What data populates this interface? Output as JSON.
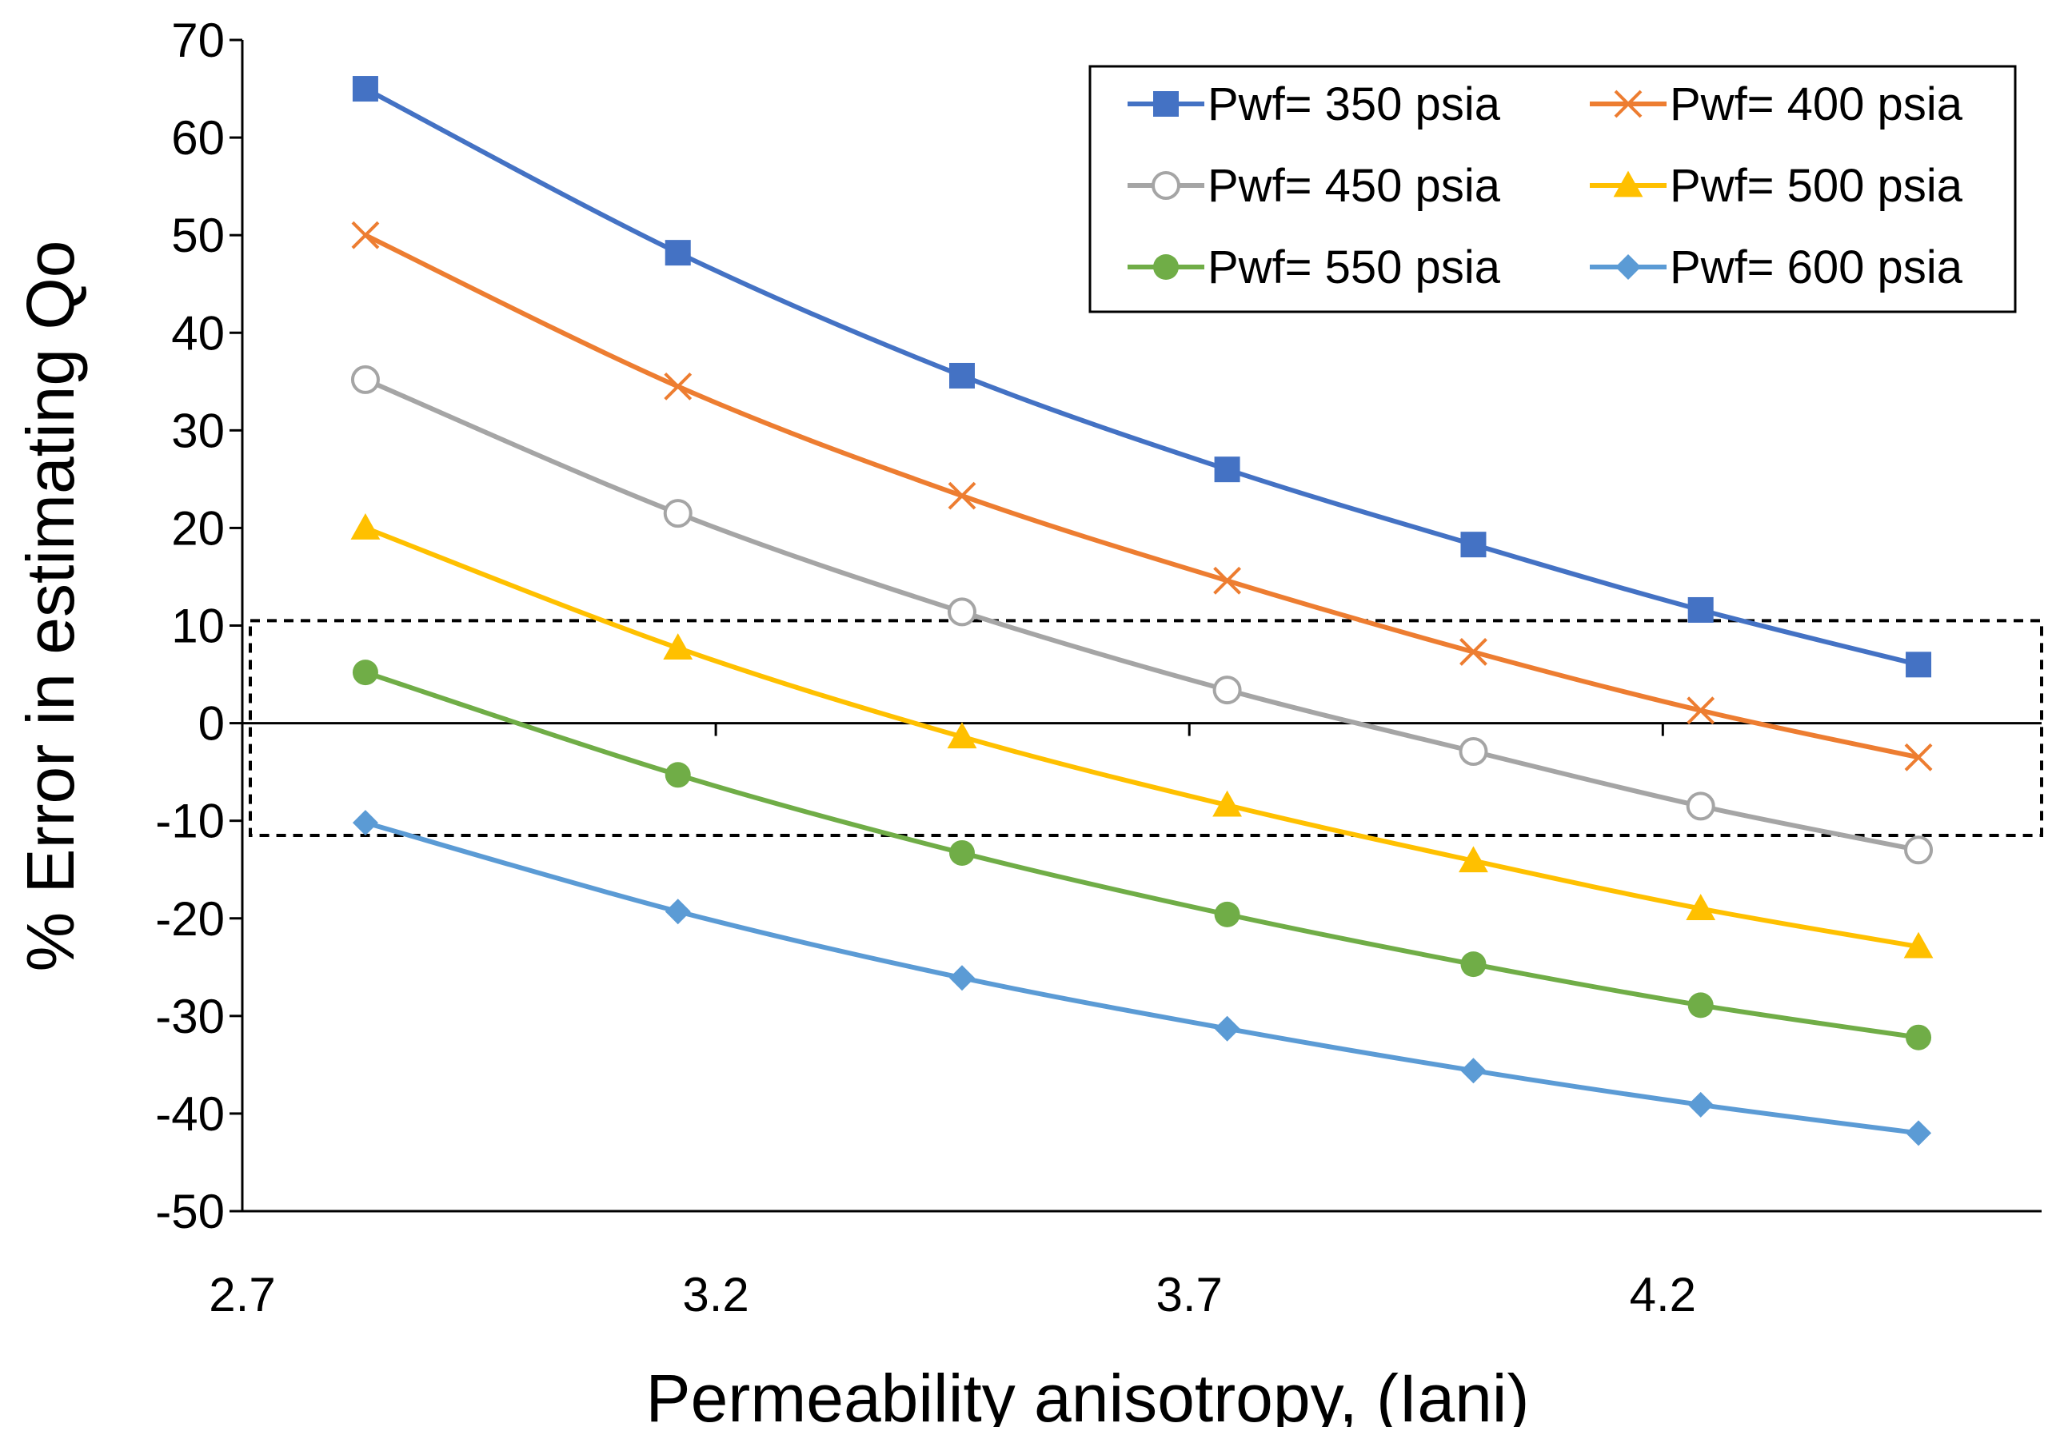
{
  "chart_data": {
    "type": "line",
    "title": "",
    "xlabel": "Permeability anisotropy, (Iani)",
    "ylabel": "% Error in estimating  Qo",
    "xlim": [
      2.7,
      4.6
    ],
    "ylim": [
      -50,
      70
    ],
    "x_ticks": [
      "2.7",
      "3.2",
      "3.7",
      "4.2"
    ],
    "x_tick_values": [
      2.7,
      3.2,
      3.7,
      4.2
    ],
    "y_ticks": [
      "70",
      "60",
      "50",
      "40",
      "30",
      "20",
      "10",
      "0",
      "-10",
      "-20",
      "-30",
      "-40",
      "-50"
    ],
    "y_tick_values": [
      70,
      60,
      50,
      40,
      30,
      20,
      10,
      0,
      -10,
      -20,
      -30,
      -40,
      -50
    ],
    "x": [
      2.83,
      3.16,
      3.46,
      3.74,
      4.0,
      4.24,
      4.47
    ],
    "highlight_band": [
      -11.5,
      10.5
    ],
    "legend_position": "top-right",
    "series": [
      {
        "name": "Pwf=  350 psia",
        "color": "#4472C4",
        "marker": "square",
        "values": [
          65,
          48.2,
          35.6,
          26,
          18.3,
          11.6,
          6
        ]
      },
      {
        "name": "Pwf=  400 psia",
        "color": "#ED7D31",
        "marker": "x",
        "values": [
          50,
          34.5,
          23.3,
          14.6,
          7.3,
          1.3,
          -3.5
        ]
      },
      {
        "name": "Pwf=  450 psia",
        "color": "#A5A5A5",
        "marker": "open-circle",
        "values": [
          35.2,
          21.5,
          11.4,
          3.4,
          -2.9,
          -8.5,
          -13
        ]
      },
      {
        "name": "Pwf=  500 psia",
        "color": "#FFC000",
        "marker": "triangle",
        "values": [
          20,
          7.7,
          -1.4,
          -8.4,
          -14.1,
          -19,
          -22.9
        ]
      },
      {
        "name": "Pwf=  550 psia",
        "color": "#70AD47",
        "marker": "circle",
        "values": [
          5.2,
          -5.3,
          -13.3,
          -19.6,
          -24.7,
          -28.9,
          -32.2
        ]
      },
      {
        "name": "Pwf=  600 psia",
        "color": "#5B9BD5",
        "marker": "diamond",
        "values": [
          -10.2,
          -19.3,
          -26.1,
          -31.3,
          -35.6,
          -39.1,
          -42
        ]
      }
    ]
  }
}
